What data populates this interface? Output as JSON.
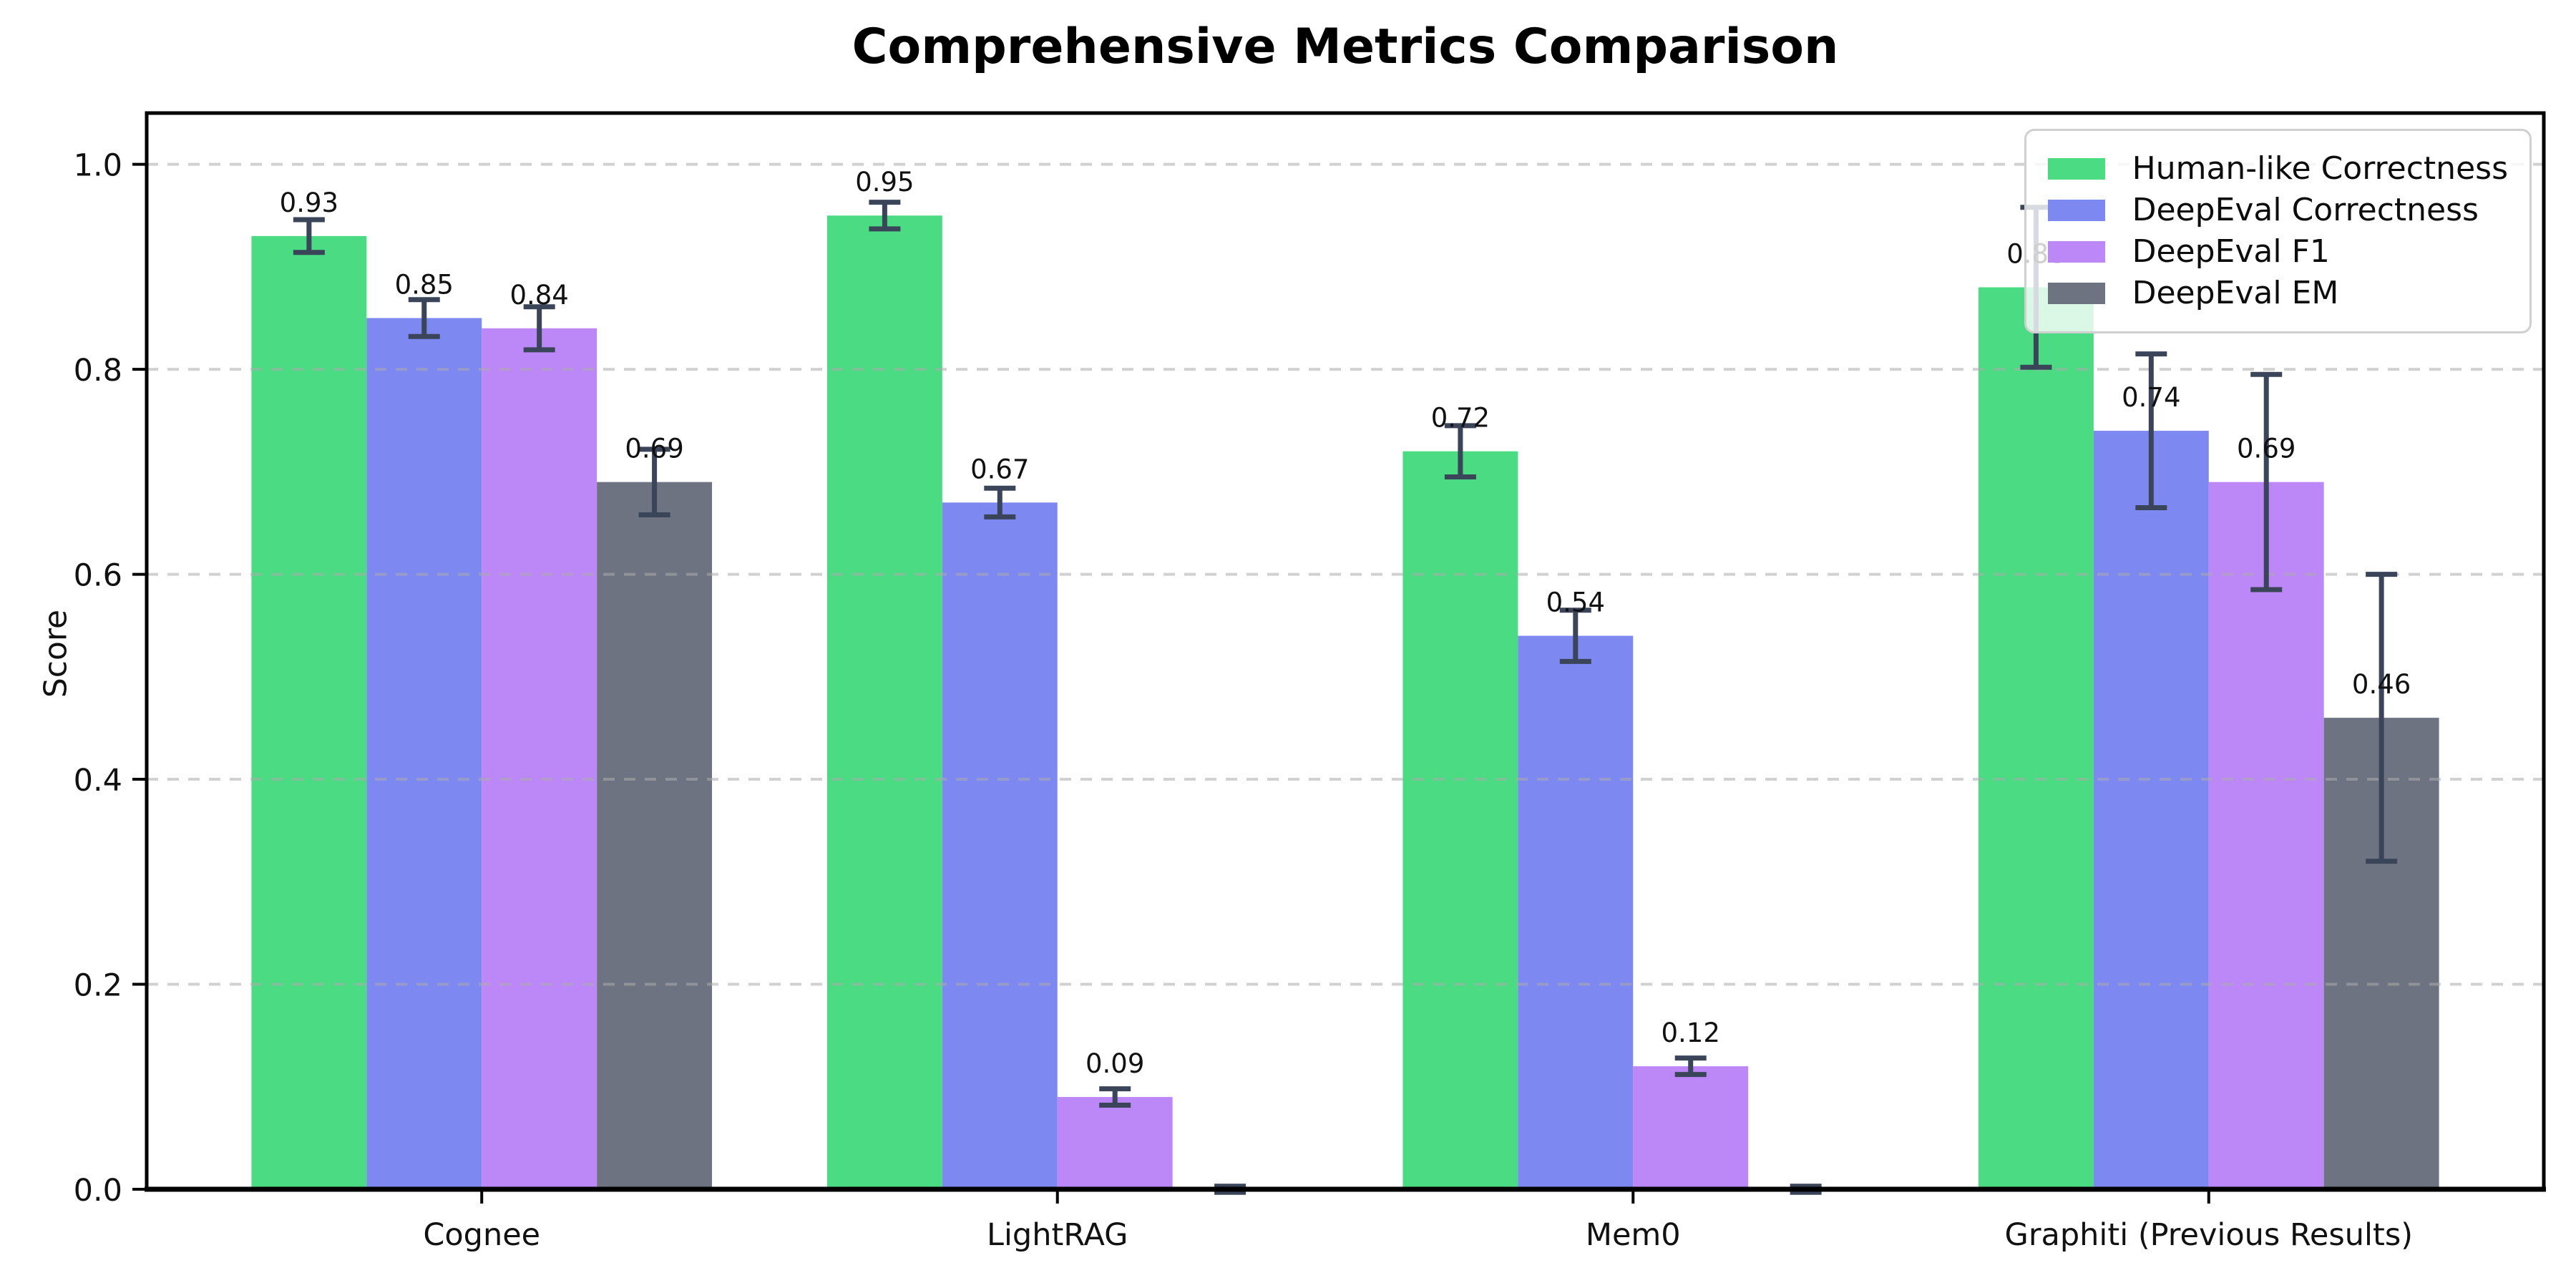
{
  "chart_data": {
    "type": "bar",
    "title": "Comprehensive Metrics Comparison",
    "ylabel": "Score",
    "xlabel": "",
    "categories": [
      "Cognee",
      "LightRAG",
      "Mem0",
      "Graphiti (Previous Results)"
    ],
    "series": [
      {
        "name": "Human-like Correctness",
        "color": "#4bdb82",
        "values": [
          0.93,
          0.95,
          0.72,
          0.88
        ],
        "errors": [
          0.016,
          0.013,
          0.025,
          0.078
        ],
        "labels": [
          "0.93",
          "0.95",
          "0.72",
          "0.88"
        ]
      },
      {
        "name": "DeepEval Correctness",
        "color": "#7d88f0",
        "values": [
          0.85,
          0.67,
          0.54,
          0.74
        ],
        "errors": [
          0.018,
          0.014,
          0.025,
          0.075
        ],
        "labels": [
          "0.85",
          "0.67",
          "0.54",
          "0.74"
        ]
      },
      {
        "name": "DeepEval F1",
        "color": "#bc87f7",
        "values": [
          0.84,
          0.09,
          0.12,
          0.69
        ],
        "errors": [
          0.021,
          0.008,
          0.008,
          0.105
        ],
        "labels": [
          "0.84",
          "0.09",
          "0.12",
          "0.69"
        ]
      },
      {
        "name": "DeepEval EM",
        "color": "#6d7380",
        "values": [
          0.69,
          0.0,
          0.0,
          0.46
        ],
        "errors": [
          0.032,
          0.003,
          0.003,
          0.14
        ],
        "labels": [
          "0.69",
          "",
          "",
          "0.46"
        ]
      }
    ],
    "ylim": [
      0,
      1.05
    ],
    "yticks": [
      0.0,
      0.2,
      0.4,
      0.6,
      0.8,
      1.0
    ],
    "ytick_labels": [
      "0.0",
      "0.2",
      "0.4",
      "0.6",
      "0.8",
      "1.0"
    ],
    "grid": {
      "axis": "y",
      "style": "dashed",
      "color": "#ababab",
      "opacity": 0.55
    },
    "legend_position": "upper right",
    "colors": {
      "error_bar": "#3a4559",
      "axis": "#000000",
      "tick_label": "#111111",
      "value_label": "#111111",
      "background": "#ffffff",
      "legend_border": "#d0d0d0"
    }
  }
}
